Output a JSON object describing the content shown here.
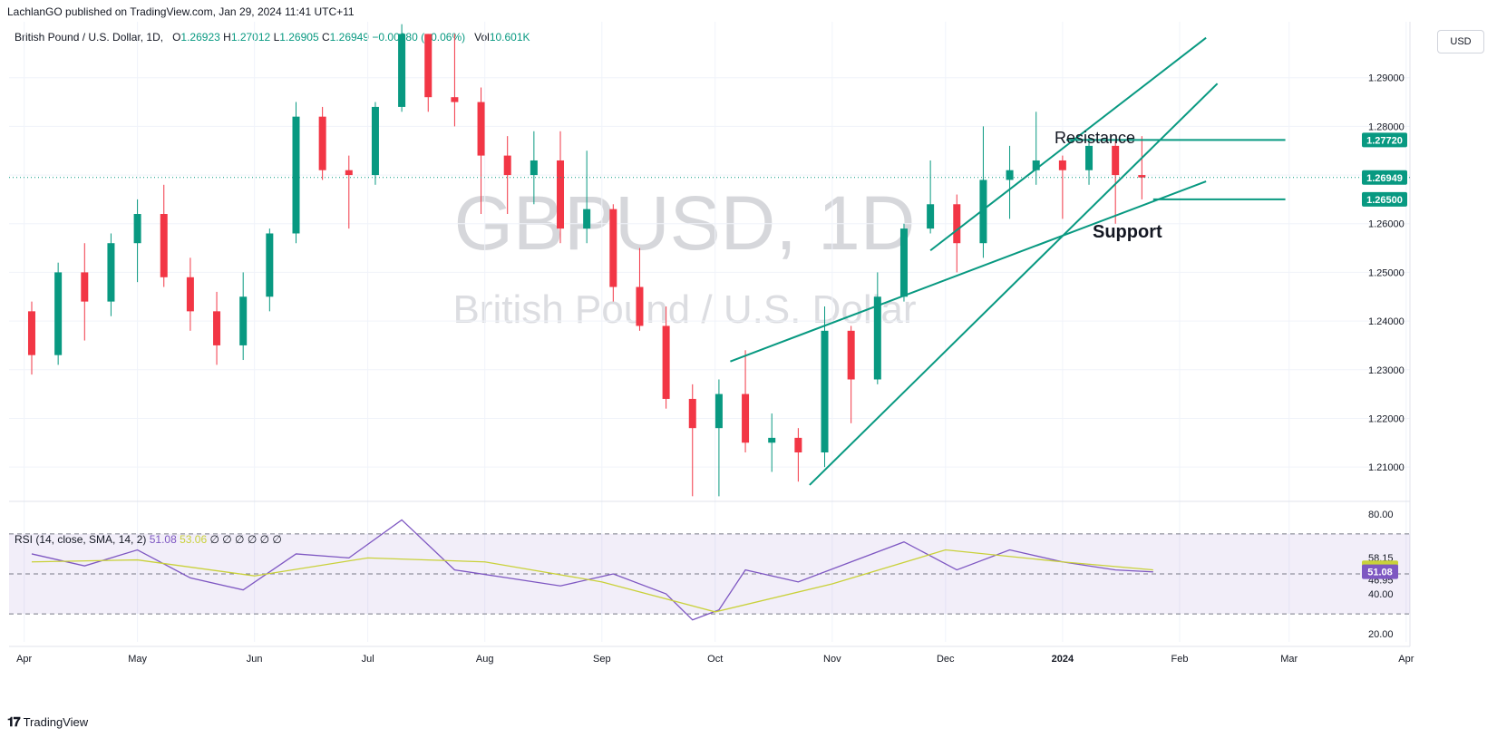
{
  "header": {
    "published": "LachlanGO published on TradingView.com, Jan 29, 2024 11:41 UTC+11",
    "symbol_name": "British Pound / U.S. Dollar, 1D,",
    "open_label": "O",
    "open": "1.26923",
    "high_label": "H",
    "high": "1.27012",
    "low_label": "L",
    "low": "1.26905",
    "close_label": "C",
    "close": "1.26949",
    "change": "−0.00080 (−0.06%)",
    "vol_label": "Vol",
    "vol": "10.601K",
    "currency_button": "USD"
  },
  "watermark": {
    "ticker": "GBPUSD, 1D",
    "name": "British Pound / U.S. Dollar"
  },
  "annotations": {
    "resistance": "Resistance",
    "support": "Support"
  },
  "rsi_legend": {
    "label": "RSI (14, close, SMA, 14, 2)",
    "rsi_value": "51.08",
    "sma_value": "53.06",
    "extras": "∅ ∅ ∅ ∅ ∅ ∅"
  },
  "footer": {
    "brand": "TradingView"
  },
  "colors": {
    "up": "#089981",
    "down": "#f23645",
    "trendline": "#089981",
    "rsi": "#7e57c2",
    "rsi_sma": "#c9d13a",
    "rsi_band": "#7e57c2"
  },
  "chart_data": [
    {
      "type": "candlestick",
      "title": "GBPUSD, 1D",
      "x_ticks": [
        "Apr",
        "May",
        "Jun",
        "Jul",
        "Aug",
        "Sep",
        "Oct",
        "Nov",
        "Dec",
        "2024",
        "Feb",
        "Mar",
        "Apr"
      ],
      "y_ticks": [
        "1.21000",
        "1.22000",
        "1.23000",
        "1.24000",
        "1.25000",
        "1.26000",
        "1.27000",
        "1.28000",
        "1.29000"
      ],
      "ylim": [
        1.2035,
        1.3015
      ],
      "price_labels": [
        {
          "value": 1.2772,
          "text": "1.27720"
        },
        {
          "value": 1.26949,
          "text": "1.26949"
        },
        {
          "value": 1.265,
          "text": "1.26500"
        }
      ],
      "horizontal_levels": [
        {
          "name": "resistance",
          "value": 1.2772,
          "from": "2024-01-02",
          "to": "2024-02-29"
        },
        {
          "name": "support",
          "value": 1.265,
          "from": "2024-01-25",
          "to": "2024-02-29"
        }
      ],
      "trendlines": [
        {
          "from": [
            "2023-10-05",
            1.2317
          ],
          "to": [
            "2024-02-08",
            1.2687
          ]
        },
        {
          "from": [
            "2023-11-27",
            1.2545
          ],
          "to": [
            "2024-02-08",
            1.2982
          ]
        },
        {
          "from": [
            "2023-10-26",
            1.2063
          ],
          "to": [
            "2024-02-11",
            1.2888
          ]
        }
      ],
      "candles": [
        [
          "2023-04-03",
          1.242,
          1.244,
          1.229,
          1.233
        ],
        [
          "2023-04-10",
          1.233,
          1.252,
          1.231,
          1.25
        ],
        [
          "2023-04-17",
          1.25,
          1.256,
          1.236,
          1.244
        ],
        [
          "2023-04-24",
          1.244,
          1.258,
          1.241,
          1.256
        ],
        [
          "2023-05-01",
          1.256,
          1.265,
          1.248,
          1.262
        ],
        [
          "2023-05-08",
          1.262,
          1.268,
          1.247,
          1.249
        ],
        [
          "2023-05-15",
          1.249,
          1.253,
          1.238,
          1.242
        ],
        [
          "2023-05-22",
          1.242,
          1.246,
          1.231,
          1.235
        ],
        [
          "2023-05-29",
          1.235,
          1.25,
          1.232,
          1.245
        ],
        [
          "2023-06-05",
          1.245,
          1.259,
          1.242,
          1.258
        ],
        [
          "2023-06-12",
          1.258,
          1.285,
          1.256,
          1.282
        ],
        [
          "2023-06-19",
          1.282,
          1.284,
          1.269,
          1.271
        ],
        [
          "2023-06-26",
          1.271,
          1.274,
          1.259,
          1.27
        ],
        [
          "2023-07-03",
          1.27,
          1.285,
          1.268,
          1.284
        ],
        [
          "2023-07-10",
          1.284,
          1.301,
          1.283,
          1.299
        ],
        [
          "2023-07-17",
          1.299,
          1.299,
          1.283,
          1.286
        ],
        [
          "2023-07-24",
          1.286,
          1.299,
          1.28,
          1.285
        ],
        [
          "2023-07-31",
          1.285,
          1.288,
          1.262,
          1.274
        ],
        [
          "2023-08-07",
          1.274,
          1.278,
          1.262,
          1.27
        ],
        [
          "2023-08-14",
          1.27,
          1.279,
          1.264,
          1.273
        ],
        [
          "2023-08-21",
          1.273,
          1.279,
          1.256,
          1.259
        ],
        [
          "2023-08-28",
          1.259,
          1.275,
          1.256,
          1.263
        ],
        [
          "2023-09-04",
          1.263,
          1.264,
          1.244,
          1.247
        ],
        [
          "2023-09-11",
          1.247,
          1.255,
          1.238,
          1.239
        ],
        [
          "2023-09-18",
          1.239,
          1.243,
          1.222,
          1.224
        ],
        [
          "2023-09-25",
          1.224,
          1.227,
          1.204,
          1.218
        ],
        [
          "2023-10-02",
          1.218,
          1.228,
          1.204,
          1.225
        ],
        [
          "2023-10-09",
          1.225,
          1.234,
          1.213,
          1.215
        ],
        [
          "2023-10-16",
          1.215,
          1.221,
          1.209,
          1.216
        ],
        [
          "2023-10-23",
          1.216,
          1.218,
          1.207,
          1.213
        ],
        [
          "2023-10-30",
          1.213,
          1.243,
          1.21,
          1.238
        ],
        [
          "2023-11-06",
          1.238,
          1.239,
          1.219,
          1.228
        ],
        [
          "2023-11-13",
          1.228,
          1.25,
          1.227,
          1.245
        ],
        [
          "2023-11-20",
          1.245,
          1.26,
          1.244,
          1.259
        ],
        [
          "2023-11-27",
          1.259,
          1.273,
          1.258,
          1.264
        ],
        [
          "2023-12-04",
          1.264,
          1.266,
          1.25,
          1.256
        ],
        [
          "2023-12-11",
          1.256,
          1.28,
          1.253,
          1.269
        ],
        [
          "2023-12-18",
          1.269,
          1.276,
          1.261,
          1.271
        ],
        [
          "2023-12-25",
          1.271,
          1.283,
          1.268,
          1.273
        ],
        [
          "2024-01-01",
          1.273,
          1.274,
          1.261,
          1.271
        ],
        [
          "2024-01-08",
          1.271,
          1.278,
          1.268,
          1.276
        ],
        [
          "2024-01-15",
          1.276,
          1.277,
          1.26,
          1.27
        ],
        [
          "2024-01-22",
          1.27,
          1.278,
          1.265,
          1.2695
        ]
      ]
    },
    {
      "type": "line",
      "title": "RSI (14, close, SMA, 14, 2)",
      "y_ticks": [
        "80.00",
        "58.15",
        "46.95",
        "40.00",
        "20.00"
      ],
      "ylim": [
        16,
        84
      ],
      "levels": [
        70,
        50,
        30
      ],
      "value_labels": [
        {
          "value": 53.06,
          "text": "53.06"
        },
        {
          "value": 51.08,
          "text": "51.08"
        }
      ],
      "series": [
        {
          "name": "RSI",
          "x": [
            "2023-04-03",
            "2023-04-17",
            "2023-05-01",
            "2023-05-15",
            "2023-05-29",
            "2023-06-12",
            "2023-06-26",
            "2023-07-10",
            "2023-07-24",
            "2023-08-07",
            "2023-08-21",
            "2023-09-04",
            "2023-09-18",
            "2023-09-25",
            "2023-10-02",
            "2023-10-09",
            "2023-10-23",
            "2023-11-06",
            "2023-11-20",
            "2023-12-04",
            "2023-12-18",
            "2024-01-01",
            "2024-01-15",
            "2024-01-25"
          ],
          "values": [
            60,
            54,
            62,
            48,
            42,
            60,
            58,
            77,
            52,
            48,
            44,
            50,
            40,
            27,
            32,
            52,
            46,
            56,
            66,
            52,
            62,
            56,
            52,
            51
          ]
        },
        {
          "name": "SMA",
          "x": [
            "2023-04-03",
            "2023-05-01",
            "2023-06-01",
            "2023-07-01",
            "2023-08-01",
            "2023-09-01",
            "2023-10-01",
            "2023-11-01",
            "2023-12-01",
            "2024-01-01",
            "2024-01-25"
          ],
          "values": [
            56,
            57,
            49,
            58,
            56,
            46,
            31,
            45,
            62,
            56,
            52
          ]
        }
      ]
    }
  ]
}
